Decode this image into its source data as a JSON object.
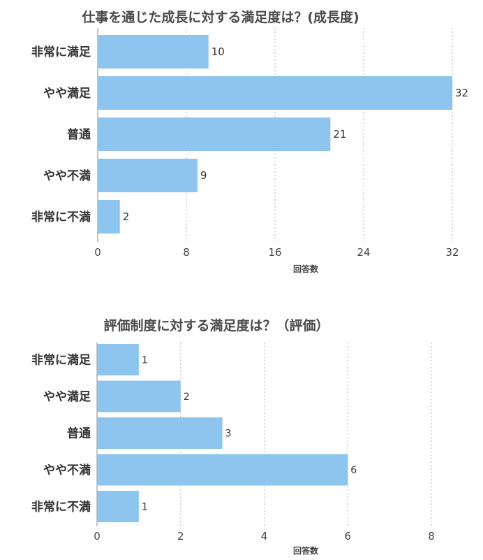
{
  "chart_data": [
    {
      "type": "bar",
      "orientation": "horizontal",
      "title": "仕事を通じた成長に対する満足度は？(成長度)",
      "categories": [
        "非常に満足",
        "やや満足",
        "普通",
        "やや不満",
        "非常に不満"
      ],
      "values": [
        10,
        32,
        21,
        9,
        2
      ],
      "xlabel": "回答数",
      "ylabel": "",
      "xlim": [
        0,
        32
      ],
      "ticks": [
        "0",
        "8",
        "16",
        "24",
        "32"
      ],
      "grid": true,
      "bar_color": "#8DC5EE"
    },
    {
      "type": "bar",
      "orientation": "horizontal",
      "title": "評価制度に対する満足度は？（評価）",
      "categories": [
        "非常に満足",
        "やや満足",
        "普通",
        "やや不満",
        "非常に不満"
      ],
      "values": [
        1,
        2,
        3,
        6,
        1
      ],
      "xlabel": "回答数",
      "ylabel": "",
      "xlim": [
        0,
        8
      ],
      "ticks": [
        "0",
        "2",
        "4",
        "6",
        "8"
      ],
      "grid": true,
      "bar_color": "#8DC5EE"
    }
  ]
}
